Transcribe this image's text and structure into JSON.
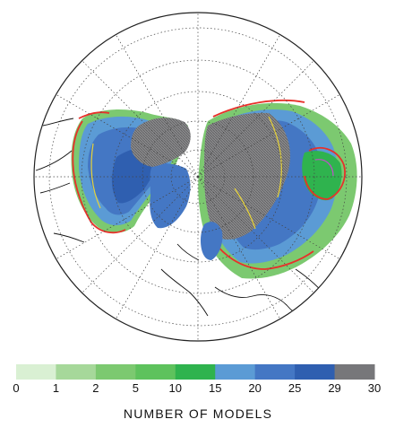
{
  "legend": {
    "title": "NUMBER OF MODELS",
    "bins": [
      {
        "from": 0,
        "to": 1,
        "color": "#d9f0d3"
      },
      {
        "from": 1,
        "to": 2,
        "color": "#a6d89a"
      },
      {
        "from": 2,
        "to": 5,
        "color": "#7cc970"
      },
      {
        "from": 5,
        "to": 10,
        "color": "#5ec25d"
      },
      {
        "from": 10,
        "to": 15,
        "color": "#2fb34e"
      },
      {
        "from": 15,
        "to": 20,
        "color": "#5b9bd5"
      },
      {
        "from": 20,
        "to": 25,
        "color": "#4477c4"
      },
      {
        "from": 25,
        "to": 29,
        "color": "#2f5fb0"
      },
      {
        "from": 29,
        "to": 30,
        "color": "#77777a"
      }
    ],
    "tick_labels": [
      "0",
      "1",
      "2",
      "5",
      "10",
      "15",
      "20",
      "25",
      "29",
      "30"
    ]
  },
  "map": {
    "projection": "north polar stereographic",
    "graticule": "dotted",
    "contour_colors": {
      "observed_extent": "#e8302a",
      "model_extent": "#e7d33a",
      "inner_contour": "#c050c8"
    }
  }
}
